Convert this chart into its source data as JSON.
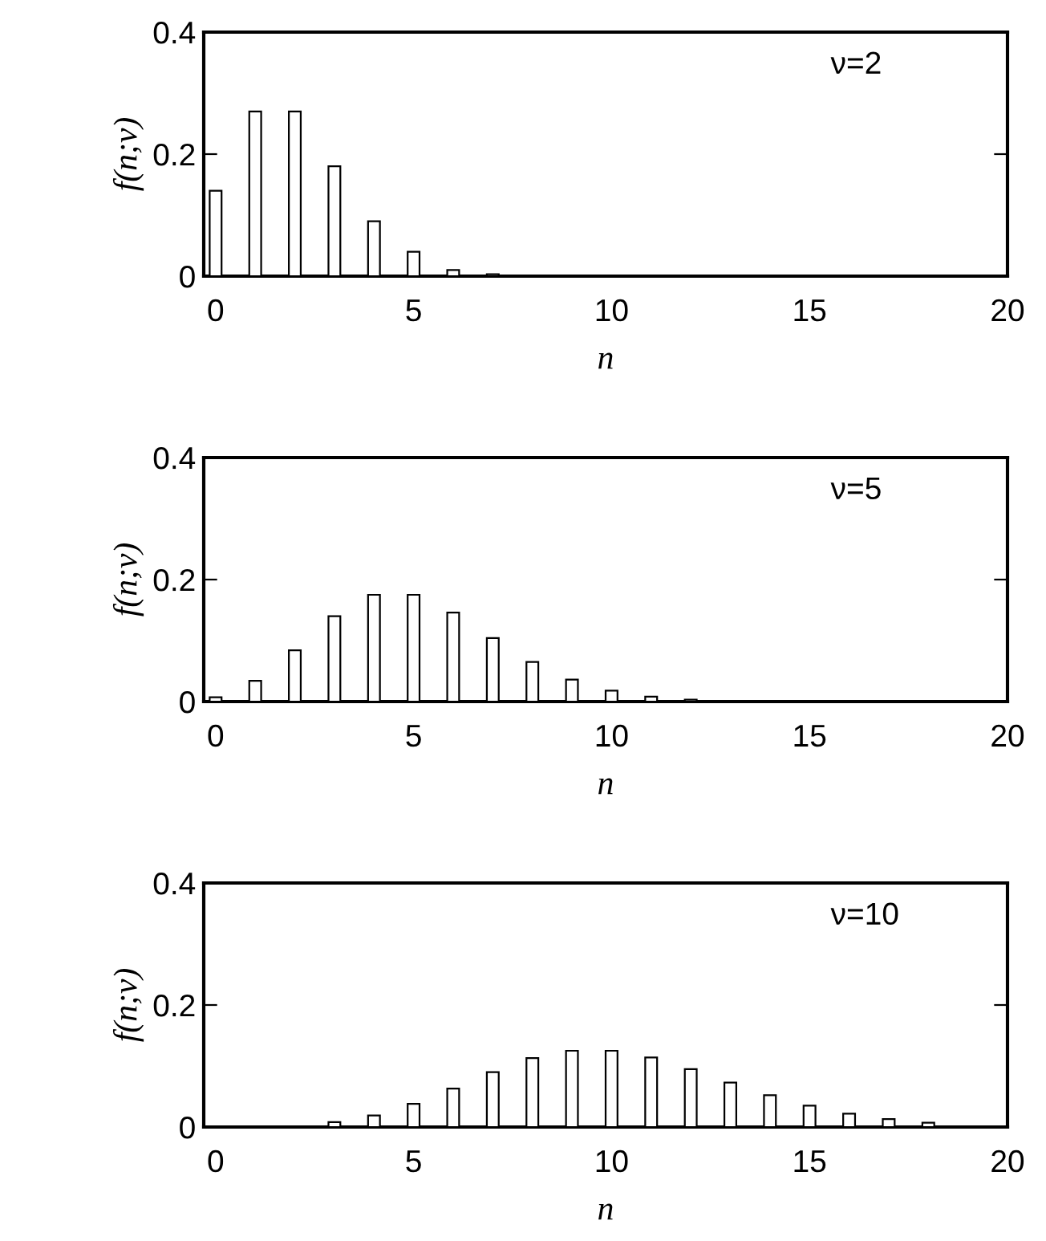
{
  "chart_data": [
    {
      "type": "bar",
      "xlabel": "n",
      "ylabel": "f(n;ν)",
      "annotations": [
        "ν=2"
      ],
      "x": [
        0,
        1,
        2,
        3,
        4,
        5,
        6,
        7
      ],
      "series": [
        {
          "color": "#ffffff",
          "values": [
            0.14,
            0.27,
            0.27,
            0.18,
            0.09,
            0.04,
            0.01,
            0.003
          ]
        }
      ],
      "xlim": [
        -0.3,
        20
      ],
      "xticks": [
        0,
        5,
        10,
        15,
        20
      ],
      "ylim": [
        0,
        0.4
      ],
      "yticks": [
        0,
        0.2,
        0.4
      ]
    },
    {
      "type": "bar",
      "xlabel": "n",
      "ylabel": "f(n;ν)",
      "annotations": [
        "ν=5"
      ],
      "x": [
        0,
        1,
        2,
        3,
        4,
        5,
        6,
        7,
        8,
        9,
        10,
        11,
        12
      ],
      "series": [
        {
          "color": "#ffffff",
          "values": [
            0.007,
            0.034,
            0.084,
            0.14,
            0.175,
            0.175,
            0.146,
            0.104,
            0.065,
            0.036,
            0.018,
            0.008,
            0.003
          ]
        }
      ],
      "xlim": [
        -0.3,
        20
      ],
      "xticks": [
        0,
        5,
        10,
        15,
        20
      ],
      "ylim": [
        0,
        0.4
      ],
      "yticks": [
        0,
        0.2,
        0.4
      ]
    },
    {
      "type": "bar",
      "xlabel": "n",
      "ylabel": "f(n;ν)",
      "annotations": [
        "ν=10"
      ],
      "x": [
        3,
        4,
        5,
        6,
        7,
        8,
        9,
        10,
        11,
        12,
        13,
        14,
        15,
        16,
        17,
        18
      ],
      "series": [
        {
          "color": "#ffffff",
          "values": [
            0.008,
            0.019,
            0.038,
            0.063,
            0.09,
            0.113,
            0.125,
            0.125,
            0.114,
            0.095,
            0.073,
            0.052,
            0.035,
            0.022,
            0.013,
            0.007
          ]
        }
      ],
      "xlim": [
        -0.3,
        20
      ],
      "xticks": [
        0,
        5,
        10,
        15,
        20
      ],
      "ylim": [
        0,
        0.4
      ],
      "yticks": [
        0,
        0.2,
        0.4
      ]
    }
  ]
}
